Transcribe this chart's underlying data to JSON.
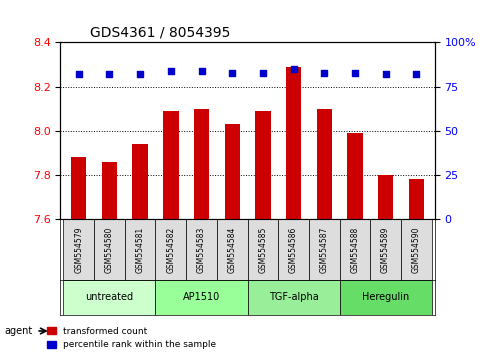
{
  "title": "GDS4361 / 8054395",
  "samples": [
    "GSM554579",
    "GSM554580",
    "GSM554581",
    "GSM554582",
    "GSM554583",
    "GSM554584",
    "GSM554585",
    "GSM554586",
    "GSM554587",
    "GSM554588",
    "GSM554589",
    "GSM554590"
  ],
  "bar_values": [
    7.88,
    7.86,
    7.94,
    8.09,
    8.1,
    8.03,
    8.09,
    8.29,
    8.1,
    7.99,
    7.8,
    7.78
  ],
  "percentile_values": [
    82,
    82,
    82,
    84,
    84,
    83,
    83,
    85,
    83,
    83,
    82,
    82
  ],
  "bar_color": "#cc0000",
  "percentile_color": "#0000cc",
  "ylim_left": [
    7.6,
    8.4
  ],
  "ylim_right": [
    0,
    100
  ],
  "yticks_left": [
    7.6,
    7.8,
    8.0,
    8.2,
    8.4
  ],
  "yticks_right": [
    0,
    25,
    50,
    75,
    100
  ],
  "ytick_labels_right": [
    "0",
    "25",
    "50",
    "75",
    "100%"
  ],
  "groups": [
    {
      "label": "untreated",
      "start": 0,
      "end": 3,
      "color": "#ccffcc"
    },
    {
      "label": "AP1510",
      "start": 3,
      "end": 6,
      "color": "#99ff99"
    },
    {
      "label": "TGF-alpha",
      "start": 6,
      "end": 9,
      "color": "#99ee99"
    },
    {
      "label": "Heregulin",
      "start": 9,
      "end": 12,
      "color": "#66dd66"
    }
  ],
  "agent_label": "agent",
  "legend_bar_label": "transformed count",
  "legend_pct_label": "percentile rank within the sample",
  "background_color": "#ffffff",
  "plot_bg_color": "#ffffff",
  "grid_color": "#000000",
  "tick_label_area_color": "#dddddd"
}
